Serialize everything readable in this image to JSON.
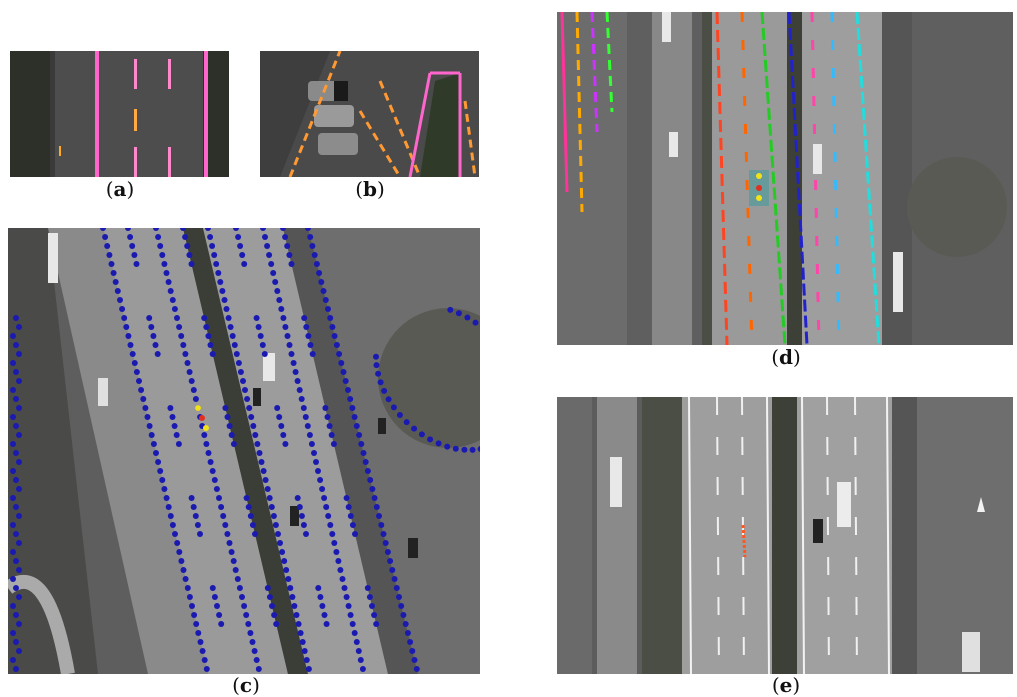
{
  "figure": {
    "panels": [
      {
        "id": "a",
        "label_open": "(",
        "label_letter": "a",
        "label_close": ")",
        "description_icon": "road-lane-detail-image"
      },
      {
        "id": "b",
        "label_open": "(",
        "label_letter": "b",
        "label_close": ")",
        "description_icon": "parking-lot-detail-image"
      },
      {
        "id": "c",
        "label_open": "(",
        "label_letter": "c",
        "label_close": ")",
        "description_icon": "keypoint-detection-image"
      },
      {
        "id": "d",
        "label_open": "(",
        "label_letter": "d",
        "label_close": ")",
        "description_icon": "lane-segmentation-image"
      },
      {
        "id": "e",
        "label_open": "(",
        "label_letter": "e",
        "label_close": ")",
        "description_icon": "raw-aerial-highway-image"
      }
    ],
    "colors": {
      "keypoint_blue": "#1a1ab0",
      "keypoint_highlight_yellow": "#f2e21a",
      "keypoint_highlight_red": "#e03020",
      "lane_pink": "#ff66cc",
      "lane_orange": "#ff9922"
    }
  }
}
